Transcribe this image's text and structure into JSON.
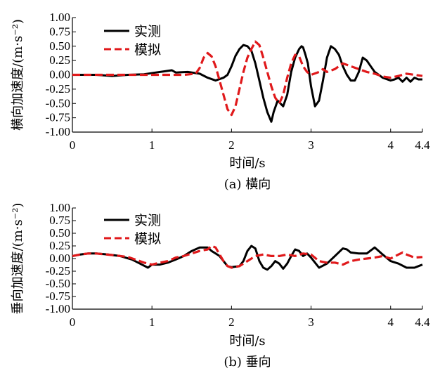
{
  "chart_data": [
    {
      "type": "line",
      "caption": "(a) 横向",
      "xlabel": "时间/s",
      "ylabel": "横向加速度/(m·s⁻²)",
      "xlim": [
        0,
        4.4
      ],
      "ylim": [
        -1.0,
        1.0
      ],
      "x_ticks": [
        "0",
        "1",
        "2",
        "3",
        "4",
        "4.4"
      ],
      "y_ticks": [
        "1.00",
        "0.75",
        "0.50",
        "0.25",
        "0.00",
        "-0.25",
        "-0.50",
        "-0.75",
        "-1.00"
      ],
      "legend_position": "top-left",
      "series": [
        {
          "name": "实测",
          "color": "#000000",
          "style": "solid",
          "points": [
            [
              0,
              0
            ],
            [
              0.3,
              0
            ],
            [
              0.5,
              -0.02
            ],
            [
              0.7,
              0
            ],
            [
              0.9,
              0.01
            ],
            [
              1.05,
              0.04
            ],
            [
              1.15,
              0.06
            ],
            [
              1.25,
              0.08
            ],
            [
              1.3,
              0.04
            ],
            [
              1.45,
              0.05
            ],
            [
              1.6,
              0.02
            ],
            [
              1.7,
              -0.05
            ],
            [
              1.8,
              -0.1
            ],
            [
              1.9,
              -0.05
            ],
            [
              1.95,
              0.0
            ],
            [
              2.0,
              0.15
            ],
            [
              2.05,
              0.33
            ],
            [
              2.1,
              0.45
            ],
            [
              2.15,
              0.52
            ],
            [
              2.2,
              0.5
            ],
            [
              2.25,
              0.42
            ],
            [
              2.3,
              0.2
            ],
            [
              2.35,
              -0.1
            ],
            [
              2.4,
              -0.4
            ],
            [
              2.45,
              -0.65
            ],
            [
              2.5,
              -0.82
            ],
            [
              2.53,
              -0.65
            ],
            [
              2.58,
              -0.45
            ],
            [
              2.65,
              -0.55
            ],
            [
              2.7,
              -0.35
            ],
            [
              2.75,
              0.05
            ],
            [
              2.8,
              0.3
            ],
            [
              2.85,
              0.45
            ],
            [
              2.88,
              0.5
            ],
            [
              2.9,
              0.48
            ],
            [
              2.93,
              0.35
            ],
            [
              2.96,
              0.2
            ],
            [
              3.0,
              -0.2
            ],
            [
              3.05,
              -0.55
            ],
            [
              3.1,
              -0.45
            ],
            [
              3.15,
              -0.1
            ],
            [
              3.2,
              0.3
            ],
            [
              3.25,
              0.5
            ],
            [
              3.3,
              0.45
            ],
            [
              3.35,
              0.35
            ],
            [
              3.4,
              0.15
            ],
            [
              3.45,
              0.0
            ],
            [
              3.5,
              -0.1
            ],
            [
              3.55,
              -0.1
            ],
            [
              3.6,
              0.05
            ],
            [
              3.65,
              0.3
            ],
            [
              3.7,
              0.25
            ],
            [
              3.75,
              0.15
            ],
            [
              3.8,
              0.05
            ],
            [
              3.85,
              0.0
            ],
            [
              3.9,
              -0.05
            ],
            [
              4.0,
              -0.1
            ],
            [
              4.05,
              -0.08
            ],
            [
              4.1,
              -0.05
            ],
            [
              4.15,
              -0.12
            ],
            [
              4.2,
              -0.05
            ],
            [
              4.25,
              -0.12
            ],
            [
              4.3,
              -0.05
            ],
            [
              4.35,
              -0.08
            ],
            [
              4.4,
              -0.08
            ]
          ]
        },
        {
          "name": "模拟",
          "color": "#e0191b",
          "style": "dashed",
          "points": [
            [
              0,
              0
            ],
            [
              0.3,
              0
            ],
            [
              0.6,
              0
            ],
            [
              0.9,
              0
            ],
            [
              1.2,
              0
            ],
            [
              1.4,
              0
            ],
            [
              1.55,
              0.02
            ],
            [
              1.6,
              0.12
            ],
            [
              1.65,
              0.3
            ],
            [
              1.7,
              0.38
            ],
            [
              1.75,
              0.32
            ],
            [
              1.8,
              0.15
            ],
            [
              1.85,
              -0.1
            ],
            [
              1.9,
              -0.35
            ],
            [
              1.95,
              -0.6
            ],
            [
              2.0,
              -0.7
            ],
            [
              2.05,
              -0.55
            ],
            [
              2.1,
              -0.25
            ],
            [
              2.15,
              0.05
            ],
            [
              2.2,
              0.3
            ],
            [
              2.25,
              0.45
            ],
            [
              2.3,
              0.58
            ],
            [
              2.35,
              0.52
            ],
            [
              2.4,
              0.3
            ],
            [
              2.45,
              0.05
            ],
            [
              2.5,
              -0.2
            ],
            [
              2.55,
              -0.4
            ],
            [
              2.6,
              -0.5
            ],
            [
              2.65,
              -0.35
            ],
            [
              2.7,
              -0.05
            ],
            [
              2.75,
              0.2
            ],
            [
              2.8,
              0.35
            ],
            [
              2.85,
              0.32
            ],
            [
              2.9,
              0.15
            ],
            [
              2.95,
              0.05
            ],
            [
              3.0,
              0.0
            ],
            [
              3.1,
              0.05
            ],
            [
              3.15,
              0.1
            ],
            [
              3.2,
              0.05
            ],
            [
              3.3,
              0.1
            ],
            [
              3.4,
              0.2
            ],
            [
              3.5,
              0.15
            ],
            [
              3.6,
              0.1
            ],
            [
              3.7,
              0.05
            ],
            [
              3.8,
              0.02
            ],
            [
              3.9,
              -0.03
            ],
            [
              4.0,
              -0.05
            ],
            [
              4.1,
              -0.02
            ],
            [
              4.2,
              0.02
            ],
            [
              4.3,
              0.0
            ],
            [
              4.4,
              -0.02
            ]
          ]
        }
      ]
    },
    {
      "type": "line",
      "caption": "(b) 垂向",
      "xlabel": "时间/s",
      "ylabel": "垂向加速度/(m·s⁻²)",
      "xlim": [
        0,
        4.4
      ],
      "ylim": [
        -1.0,
        1.0
      ],
      "x_ticks": [
        "0",
        "1",
        "2",
        "3",
        "4",
        "4.4"
      ],
      "y_ticks": [
        "1.00",
        "0.75",
        "0.50",
        "0.25",
        "0.00",
        "-0.25",
        "-0.50",
        "-0.75",
        "-1.00"
      ],
      "legend_position": "top-left",
      "series": [
        {
          "name": "实测",
          "color": "#000000",
          "style": "solid",
          "points": [
            [
              0,
              0.05
            ],
            [
              0.1,
              0.08
            ],
            [
              0.2,
              0.1
            ],
            [
              0.3,
              0.1
            ],
            [
              0.45,
              0.08
            ],
            [
              0.6,
              0.05
            ],
            [
              0.75,
              -0.02
            ],
            [
              0.85,
              -0.1
            ],
            [
              0.95,
              -0.18
            ],
            [
              1.0,
              -0.12
            ],
            [
              1.1,
              -0.12
            ],
            [
              1.2,
              -0.08
            ],
            [
              1.3,
              -0.02
            ],
            [
              1.4,
              0.05
            ],
            [
              1.5,
              0.15
            ],
            [
              1.6,
              0.22
            ],
            [
              1.7,
              0.22
            ],
            [
              1.75,
              0.15
            ],
            [
              1.8,
              0.1
            ],
            [
              1.85,
              0.05
            ],
            [
              1.9,
              -0.05
            ],
            [
              1.95,
              -0.15
            ],
            [
              2.0,
              -0.17
            ],
            [
              2.1,
              -0.15
            ],
            [
              2.15,
              -0.05
            ],
            [
              2.2,
              0.15
            ],
            [
              2.25,
              0.25
            ],
            [
              2.3,
              0.2
            ],
            [
              2.35,
              -0.05
            ],
            [
              2.4,
              -0.18
            ],
            [
              2.45,
              -0.22
            ],
            [
              2.5,
              -0.15
            ],
            [
              2.55,
              -0.05
            ],
            [
              2.6,
              -0.1
            ],
            [
              2.65,
              -0.2
            ],
            [
              2.7,
              -0.1
            ],
            [
              2.75,
              0.05
            ],
            [
              2.8,
              0.18
            ],
            [
              2.85,
              0.15
            ],
            [
              2.9,
              0.05
            ],
            [
              2.95,
              0.1
            ],
            [
              3.0,
              0.02
            ],
            [
              3.1,
              -0.18
            ],
            [
              3.2,
              -0.1
            ],
            [
              3.3,
              0.05
            ],
            [
              3.4,
              0.2
            ],
            [
              3.45,
              0.18
            ],
            [
              3.5,
              0.12
            ],
            [
              3.6,
              0.1
            ],
            [
              3.7,
              0.1
            ],
            [
              3.8,
              0.22
            ],
            [
              3.85,
              0.15
            ],
            [
              3.9,
              0.08
            ],
            [
              4.0,
              -0.05
            ],
            [
              4.1,
              -0.1
            ],
            [
              4.2,
              -0.18
            ],
            [
              4.3,
              -0.18
            ],
            [
              4.35,
              -0.15
            ],
            [
              4.4,
              -0.12
            ]
          ]
        },
        {
          "name": "模拟",
          "color": "#e0191b",
          "style": "dashed",
          "points": [
            [
              0,
              0.05
            ],
            [
              0.1,
              0.08
            ],
            [
              0.2,
              0.1
            ],
            [
              0.3,
              0.1
            ],
            [
              0.5,
              0.07
            ],
            [
              0.7,
              0.03
            ],
            [
              0.9,
              -0.08
            ],
            [
              1.0,
              -0.12
            ],
            [
              1.1,
              -0.08
            ],
            [
              1.2,
              -0.05
            ],
            [
              1.3,
              0.02
            ],
            [
              1.4,
              0.05
            ],
            [
              1.5,
              0.1
            ],
            [
              1.6,
              0.15
            ],
            [
              1.7,
              0.18
            ],
            [
              1.75,
              0.25
            ],
            [
              1.8,
              0.22
            ],
            [
              1.85,
              0.08
            ],
            [
              1.9,
              -0.05
            ],
            [
              1.95,
              -0.15
            ],
            [
              2.0,
              -0.18
            ],
            [
              2.1,
              -0.15
            ],
            [
              2.2,
              -0.05
            ],
            [
              2.3,
              0.05
            ],
            [
              2.4,
              0.08
            ],
            [
              2.5,
              0.05
            ],
            [
              2.6,
              0.05
            ],
            [
              2.7,
              0.08
            ],
            [
              2.8,
              0.05
            ],
            [
              2.9,
              0.1
            ],
            [
              3.0,
              0.08
            ],
            [
              3.1,
              -0.05
            ],
            [
              3.2,
              -0.08
            ],
            [
              3.3,
              -0.08
            ],
            [
              3.4,
              -0.12
            ],
            [
              3.5,
              -0.05
            ],
            [
              3.6,
              -0.02
            ],
            [
              3.7,
              0.0
            ],
            [
              3.8,
              0.02
            ],
            [
              3.9,
              0.05
            ],
            [
              4.0,
              0.0
            ],
            [
              4.1,
              0.08
            ],
            [
              4.15,
              0.12
            ],
            [
              4.2,
              0.08
            ],
            [
              4.3,
              0.02
            ],
            [
              4.4,
              0.03
            ]
          ]
        }
      ]
    }
  ]
}
